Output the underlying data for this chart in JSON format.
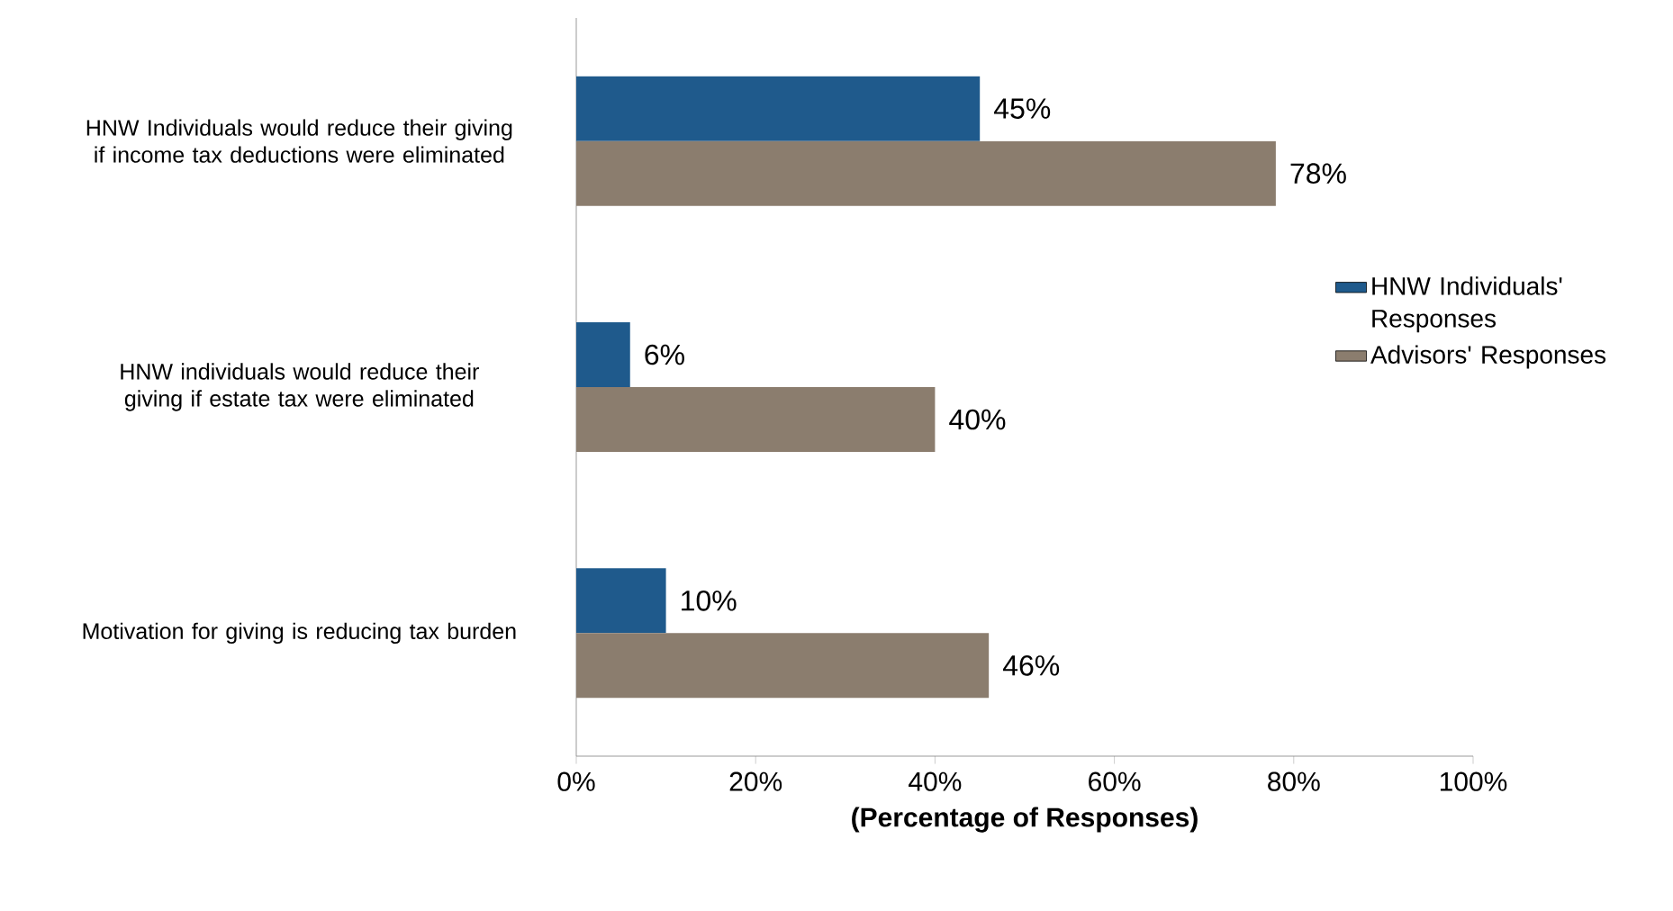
{
  "chart_data": {
    "type": "bar",
    "orientation": "horizontal",
    "xlabel": "(Percentage of Responses)",
    "categories": [
      "HNW Individuals would reduce their giving if income tax deductions were eliminated",
      "HNW individuals would reduce their giving if estate tax were eliminated",
      "Motivation for giving is reducing tax burden"
    ],
    "series": [
      {
        "name": "HNW Individuals' Responses",
        "color": "#1f5a8c",
        "values": [
          45,
          6,
          10
        ],
        "value_labels": [
          "45%",
          "6%",
          "10%"
        ]
      },
      {
        "name": "Advisors' Responses",
        "color": "#8b7d6e",
        "values": [
          78,
          40,
          46
        ],
        "value_labels": [
          "78%",
          "40%",
          "46%"
        ]
      }
    ],
    "xlim": [
      0,
      100
    ],
    "xticks": [
      {
        "value": 0,
        "label": "0%"
      },
      {
        "value": 20,
        "label": "20%"
      },
      {
        "value": 40,
        "label": "40%"
      },
      {
        "value": 60,
        "label": "60%"
      },
      {
        "value": 80,
        "label": "80%"
      },
      {
        "value": 100,
        "label": "100%"
      }
    ],
    "legend": "right"
  }
}
